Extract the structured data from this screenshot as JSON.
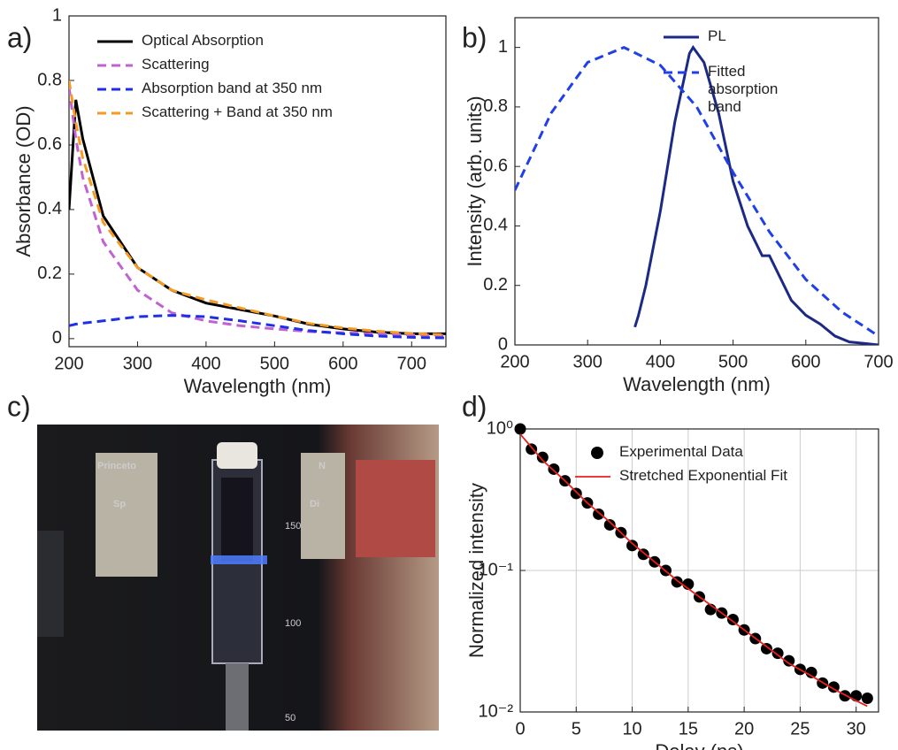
{
  "chart_data": [
    {
      "type": "line",
      "panel_label": "a)",
      "x_label": "Wavelength (nm)",
      "y_label": "Absorbance (OD)",
      "x": [
        200,
        210,
        220,
        250,
        300,
        350,
        400,
        450,
        500,
        550,
        600,
        650,
        700,
        750
      ],
      "xlim": [
        200,
        750
      ],
      "xticks": [
        200,
        300,
        400,
        500,
        600,
        700
      ],
      "ylim": [
        -0.025,
        1
      ],
      "yticks": [
        0,
        0.2,
        0.4,
        0.6,
        0.8,
        1
      ],
      "legend": "upper center",
      "series": [
        {
          "name": "Optical Absorption",
          "color": "#000000",
          "dash": false,
          "values": [
            0.4,
            0.74,
            0.62,
            0.38,
            0.22,
            0.15,
            0.11,
            0.09,
            0.07,
            0.045,
            0.03,
            0.02,
            0.015,
            0.015
          ]
        },
        {
          "name": "Scattering",
          "color": "#c062d2",
          "dash": true,
          "values": [
            0.78,
            0.62,
            0.5,
            0.3,
            0.15,
            0.08,
            0.055,
            0.04,
            0.03,
            0.022,
            0.018,
            0.015,
            0.012,
            0.01
          ]
        },
        {
          "name": "Absorption band at 350 nm",
          "color": "#1f2fe6",
          "dash": true,
          "values": [
            0.04,
            0.045,
            0.048,
            0.055,
            0.068,
            0.072,
            0.068,
            0.055,
            0.04,
            0.025,
            0.015,
            0.008,
            0.004,
            0.002
          ]
        },
        {
          "name": "Scattering + Band at 350 nm",
          "color": "#f59a23",
          "dash": true,
          "values": [
            0.8,
            0.67,
            0.56,
            0.36,
            0.22,
            0.15,
            0.12,
            0.095,
            0.07,
            0.047,
            0.033,
            0.023,
            0.016,
            0.012
          ]
        }
      ]
    },
    {
      "type": "line",
      "panel_label": "b)",
      "x_label": "Wavelength (nm)",
      "y_label": "Intensity (arb. units)",
      "xlim": [
        200,
        700
      ],
      "xticks": [
        200,
        300,
        400,
        500,
        600,
        700
      ],
      "ylim": [
        0,
        1.1
      ],
      "yticks": [
        0,
        0.2,
        0.4,
        0.6,
        0.8,
        1
      ],
      "legend": "upper right",
      "series": [
        {
          "name": "PL",
          "color": "#1c2a86",
          "dash": false,
          "x": [
            365,
            370,
            380,
            400,
            420,
            440,
            445,
            460,
            480,
            500,
            520,
            540,
            550,
            560,
            580,
            600,
            620,
            640,
            660,
            680,
            700
          ],
          "values": [
            0.06,
            0.1,
            0.2,
            0.45,
            0.75,
            0.98,
            1.0,
            0.95,
            0.78,
            0.55,
            0.4,
            0.3,
            0.3,
            0.25,
            0.15,
            0.1,
            0.07,
            0.03,
            0.01,
            0.005,
            0
          ]
        },
        {
          "name": "Fitted absorption band",
          "color": "#1f3fe8",
          "dash": true,
          "x": [
            200,
            250,
            300,
            350,
            400,
            450,
            500,
            550,
            600,
            650,
            700
          ],
          "values": [
            0.52,
            0.78,
            0.95,
            1.0,
            0.94,
            0.8,
            0.58,
            0.38,
            0.22,
            0.11,
            0.03
          ]
        }
      ]
    },
    {
      "type": "scatter",
      "panel_label": "d)",
      "x_label": "Delay (ns)",
      "y_label": "Normalized intensity",
      "xlim": [
        0,
        32
      ],
      "xticks": [
        0,
        5,
        10,
        15,
        20,
        25,
        30
      ],
      "ylim": [
        0.01,
        1
      ],
      "y_log": true,
      "grid": true,
      "legend": "upper right",
      "yticks": [
        {
          "value": 0.01,
          "label": "10⁻²"
        },
        {
          "value": 0.1,
          "label": "10⁻¹"
        },
        {
          "value": 1,
          "label": "10⁰"
        }
      ],
      "series": [
        {
          "name": "Experimental Data",
          "type": "scatter",
          "color": "#000000",
          "x": [
            0,
            1,
            2,
            3,
            4,
            5,
            6,
            7,
            8,
            9,
            10,
            11,
            12,
            13,
            14,
            15,
            16,
            17,
            18,
            19,
            20,
            21,
            22,
            23,
            24,
            25,
            26,
            27,
            28,
            29,
            30,
            31
          ],
          "values": [
            1.0,
            0.72,
            0.63,
            0.52,
            0.43,
            0.35,
            0.3,
            0.25,
            0.21,
            0.185,
            0.15,
            0.13,
            0.115,
            0.1,
            0.083,
            0.08,
            0.065,
            0.053,
            0.05,
            0.045,
            0.038,
            0.033,
            0.028,
            0.026,
            0.023,
            0.02,
            0.019,
            0.016,
            0.015,
            0.013,
            0.013,
            0.0125
          ]
        },
        {
          "name": "Stretched Exponential Fit",
          "type": "line",
          "color": "#e8201c",
          "dash": false,
          "x": [
            0,
            2,
            4,
            6,
            8,
            10,
            12,
            14,
            16,
            18,
            20,
            22,
            24,
            26,
            28,
            30,
            31
          ],
          "values": [
            0.92,
            0.6,
            0.43,
            0.3,
            0.22,
            0.155,
            0.115,
            0.085,
            0.065,
            0.05,
            0.038,
            0.029,
            0.022,
            0.018,
            0.0145,
            0.012,
            0.011
          ]
        }
      ]
    }
  ],
  "photo": {
    "panel_label": "c)",
    "texts": [
      "Princeto",
      "Sp",
      "N",
      "Di",
      "150",
      "100",
      "50"
    ]
  }
}
